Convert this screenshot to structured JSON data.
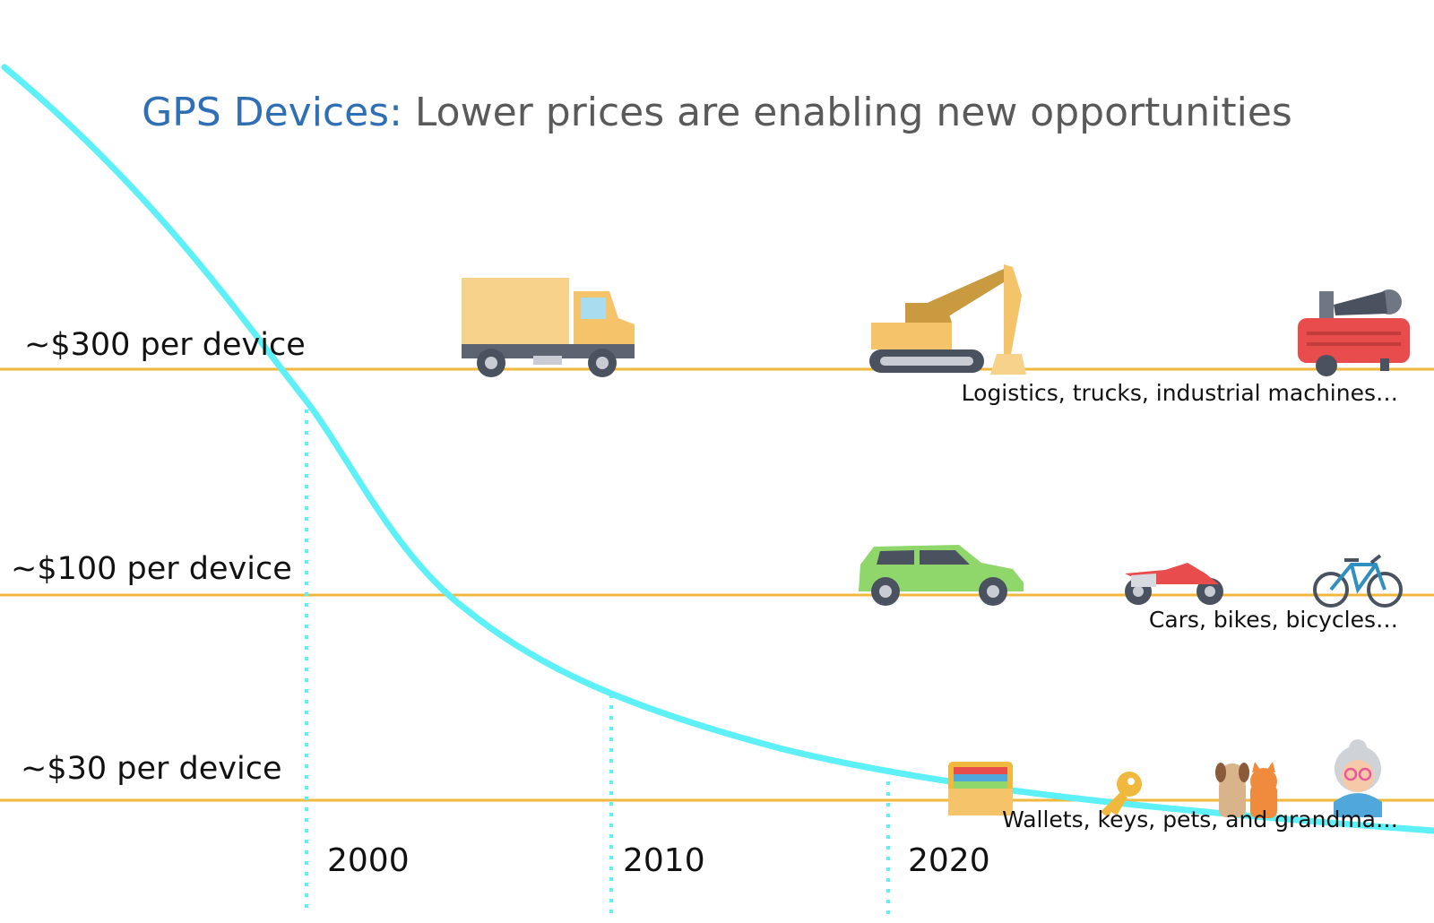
{
  "title": {
    "highlight": "GPS Devices:",
    "rest": " Lower prices are enabling new opportunities"
  },
  "colors": {
    "curve": "#5ef0f7",
    "tier_line": "#f0b83c",
    "title_highlight": "#2f6fb5",
    "title_rest": "#5a5a5a",
    "year_marker": "#5ef0f7"
  },
  "tiers": [
    {
      "label": "~$300 per device",
      "caption": "Logistics, trucks, industrial machines…",
      "icons": [
        "truck-icon",
        "excavator-icon",
        "air-compressor-icon"
      ]
    },
    {
      "label": "~$100 per device",
      "caption": "Cars, bikes, bicycles…",
      "icons": [
        "car-icon",
        "motorcycle-icon",
        "bicycle-icon"
      ]
    },
    {
      "label": "~$30 per device",
      "caption": "Wallets, keys, pets, and grandma…",
      "icons": [
        "wallet-icon",
        "key-icon",
        "dog-cat-icon",
        "grandma-icon"
      ]
    }
  ],
  "years": [
    "2000",
    "2010",
    "2020"
  ]
}
